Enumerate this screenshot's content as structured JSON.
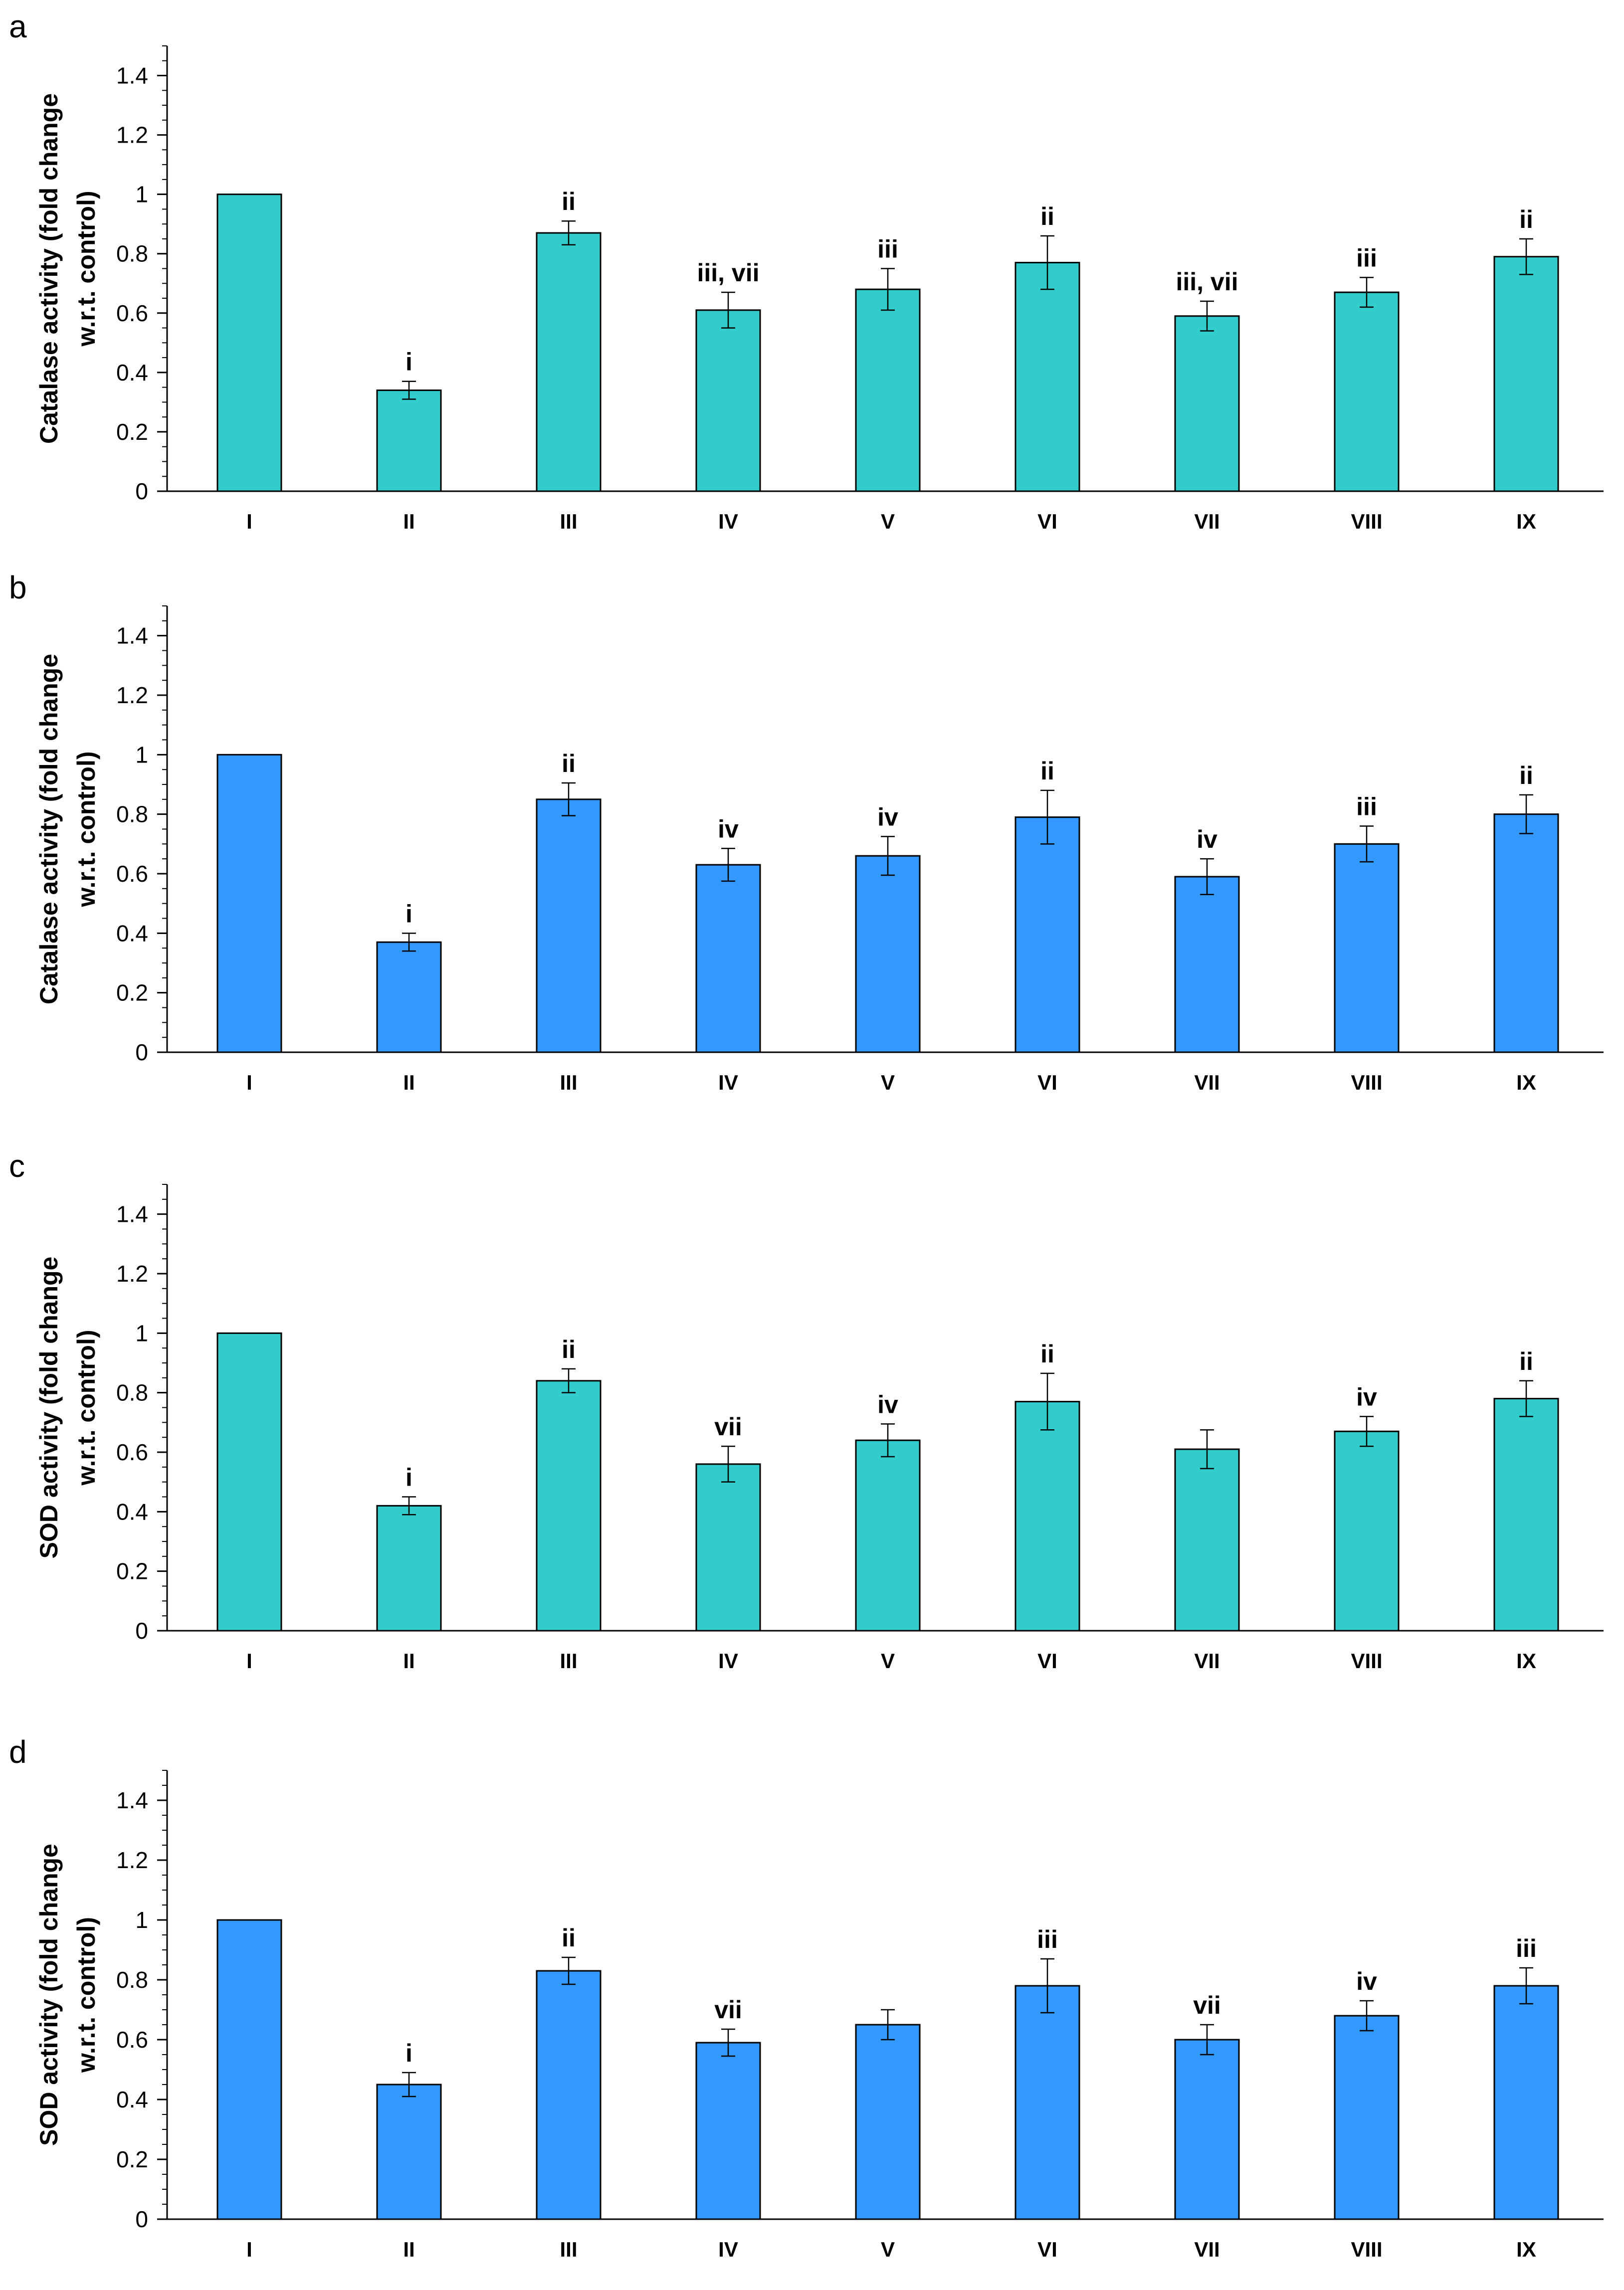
{
  "chart_data": [
    {
      "panel": "a",
      "type": "bar",
      "ylabel": [
        "Catalase activity  (fold change",
        "w.r.t. control)"
      ],
      "categories": [
        "I",
        "II",
        "III",
        "IV",
        "V",
        "VI",
        "VII",
        "VIII",
        "IX"
      ],
      "values": [
        1.0,
        0.34,
        0.87,
        0.61,
        0.68,
        0.77,
        0.59,
        0.67,
        0.79
      ],
      "errors": [
        0,
        0.03,
        0.04,
        0.06,
        0.07,
        0.09,
        0.05,
        0.05,
        0.06
      ],
      "labels": [
        "",
        "i",
        "ii",
        "iii, vii",
        "iii",
        "ii",
        "iii, vii",
        "iii",
        "ii"
      ],
      "ylim": [
        0,
        1.5
      ],
      "yticks": [
        0,
        0.2,
        0.4,
        0.6,
        0.8,
        1,
        1.2,
        1.4
      ],
      "color": "#33CCCC"
    },
    {
      "panel": "b",
      "type": "bar",
      "ylabel": [
        "Catalase activity  (fold change",
        "w.r.t. control)"
      ],
      "categories": [
        "I",
        "II",
        "III",
        "IV",
        "V",
        "VI",
        "VII",
        "VIII",
        "IX"
      ],
      "values": [
        1.0,
        0.37,
        0.85,
        0.63,
        0.66,
        0.79,
        0.59,
        0.7,
        0.8
      ],
      "errors": [
        0,
        0.03,
        0.055,
        0.055,
        0.065,
        0.09,
        0.06,
        0.06,
        0.065
      ],
      "labels": [
        "",
        "i",
        "ii",
        "iv",
        "iv",
        "ii",
        "iv",
        "iii",
        "ii"
      ],
      "ylim": [
        0,
        1.5
      ],
      "yticks": [
        0,
        0.2,
        0.4,
        0.6,
        0.8,
        1,
        1.2,
        1.4
      ],
      "color": "#3399FF"
    },
    {
      "panel": "c",
      "type": "bar",
      "ylabel": [
        "SOD activity  (fold change",
        "w.r.t. control)"
      ],
      "categories": [
        "I",
        "II",
        "III",
        "IV",
        "V",
        "VI",
        "VII",
        "VIII",
        "IX"
      ],
      "values": [
        1.0,
        0.42,
        0.84,
        0.56,
        0.64,
        0.77,
        0.61,
        0.67,
        0.78
      ],
      "errors": [
        0,
        0.03,
        0.04,
        0.06,
        0.055,
        0.095,
        0.065,
        0.05,
        0.06
      ],
      "labels": [
        "",
        "i",
        "ii",
        "vii",
        "iv",
        "ii",
        "",
        "iv",
        "ii"
      ],
      "ylim": [
        0,
        1.5
      ],
      "yticks": [
        0,
        0.2,
        0.4,
        0.6,
        0.8,
        1,
        1.2,
        1.4
      ],
      "color": "#33CCCC"
    },
    {
      "panel": "d",
      "type": "bar",
      "ylabel": [
        "SOD activity  (fold change",
        "w.r.t. control)"
      ],
      "categories": [
        "I",
        "II",
        "III",
        "IV",
        "V",
        "VI",
        "VII",
        "VIII",
        "IX"
      ],
      "values": [
        1.0,
        0.45,
        0.83,
        0.59,
        0.65,
        0.78,
        0.6,
        0.68,
        0.78
      ],
      "errors": [
        0,
        0.04,
        0.045,
        0.045,
        0.05,
        0.09,
        0.05,
        0.05,
        0.06
      ],
      "labels": [
        "",
        "i",
        "ii",
        "vii",
        "",
        "iii",
        "vii",
        "iv",
        "iii"
      ],
      "ylim": [
        0,
        1.5
      ],
      "yticks": [
        0,
        0.2,
        0.4,
        0.6,
        0.8,
        1,
        1.2,
        1.4
      ],
      "color": "#3399FF"
    }
  ]
}
